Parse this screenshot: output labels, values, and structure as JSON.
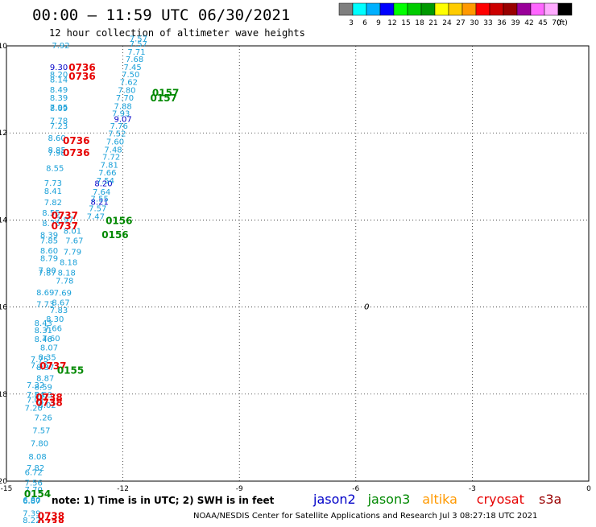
{
  "title": "00:00 – 11:59 UTC 06/30/2021",
  "subtitle": "12 hour collection of altimeter wave heights",
  "note": "note:  1) Time is in UTC; 2) SWH is in feet",
  "credit": "NOAA/NESDIS Center for Satellite Applications and Research   Jul  3 08:27:18 UTC 2021",
  "colors": {
    "obs_default": "#1aa0d8",
    "obs_high": "#0000c8",
    "time_cryosat": "#e60000",
    "time_jason3": "#008800",
    "grid": "#000000",
    "frame": "#000000"
  },
  "colorbar": {
    "colors": [
      "#7f7f7f",
      "#00ffff",
      "#00b0ff",
      "#0000ff",
      "#00ff00",
      "#00cc00",
      "#009900",
      "#ffff00",
      "#ffcc00",
      "#ff9900",
      "#ff0000",
      "#cc0000",
      "#990000",
      "#990099",
      "#ff66ff",
      "#ffaaff",
      "#000000"
    ],
    "labels": [
      "3",
      "6",
      "9",
      "12",
      "15",
      "18",
      "21",
      "24",
      "27",
      "30",
      "33",
      "36",
      "39",
      "42",
      "45",
      "70",
      "(ft)"
    ]
  },
  "legend": [
    {
      "name": "jason2",
      "color": "#0000c8"
    },
    {
      "name": "jason3",
      "color": "#008800"
    },
    {
      "name": "altika",
      "color": "#ff9900"
    },
    {
      "name": "cryosat",
      "color": "#e60000"
    },
    {
      "name": "s3a",
      "color": "#990000"
    }
  ],
  "chart_data": {
    "type": "scatter",
    "title": "00:00 – 11:59 UTC 06/30/2021",
    "subtitle": "12 hour collection of altimeter wave heights",
    "xlim": [
      -15,
      0
    ],
    "ylim": [
      -20,
      -10
    ],
    "x_ticks": [
      "-15",
      "-12",
      "-9",
      "-6",
      "-3",
      "0"
    ],
    "y_ticks": [
      "-10",
      "-12",
      "-14",
      "-16",
      "-18",
      "-20"
    ],
    "x_tick_values": [
      -15,
      -12,
      -9,
      -6,
      -3,
      0
    ],
    "y_tick_values": [
      -10,
      -12,
      -14,
      -16,
      -18,
      -20
    ],
    "grid": true,
    "observations": [
      {
        "x": -13.6,
        "y": -10.06,
        "v": "7.92",
        "c": "obs_default"
      },
      {
        "x": -13.65,
        "y": -10.55,
        "v": "9.30",
        "c": "obs_high"
      },
      {
        "x": -13.65,
        "y": -10.72,
        "v": "8.20",
        "c": "obs_default"
      },
      {
        "x": -13.65,
        "y": -10.84,
        "v": "8.14",
        "c": "obs_default"
      },
      {
        "x": -13.65,
        "y": -11.07,
        "v": "8.49",
        "c": "obs_default"
      },
      {
        "x": -13.65,
        "y": -11.26,
        "v": "8.39",
        "c": "obs_default"
      },
      {
        "x": -13.65,
        "y": -11.48,
        "v": "7.95",
        "c": "obs_default"
      },
      {
        "x": -13.65,
        "y": -11.5,
        "v": "8.09",
        "c": "obs_default"
      },
      {
        "x": -13.65,
        "y": -11.78,
        "v": "7.78",
        "c": "obs_default"
      },
      {
        "x": -13.65,
        "y": -11.9,
        "v": "7.23",
        "c": "obs_default"
      },
      {
        "x": -13.7,
        "y": -12.18,
        "v": "8.60",
        "c": "obs_default"
      },
      {
        "x": -13.7,
        "y": -12.46,
        "v": "8.85",
        "c": "obs_default"
      },
      {
        "x": -13.7,
        "y": -12.52,
        "v": "7.98",
        "c": "obs_default"
      },
      {
        "x": -13.75,
        "y": -12.87,
        "v": "8.55",
        "c": "obs_default"
      },
      {
        "x": -13.8,
        "y": -13.22,
        "v": "7.73",
        "c": "obs_default"
      },
      {
        "x": -13.8,
        "y": -13.4,
        "v": "8.41",
        "c": "obs_default"
      },
      {
        "x": -13.8,
        "y": -13.66,
        "v": "7.82",
        "c": "obs_default"
      },
      {
        "x": -13.85,
        "y": -13.9,
        "v": "8.55",
        "c": "obs_default"
      },
      {
        "x": -13.85,
        "y": -14.14,
        "v": "8.76",
        "c": "obs_default"
      },
      {
        "x": -13.9,
        "y": -14.41,
        "v": "8.39",
        "c": "obs_default"
      },
      {
        "x": -13.9,
        "y": -14.54,
        "v": "7.85",
        "c": "obs_default"
      },
      {
        "x": -13.9,
        "y": -14.77,
        "v": "8.60",
        "c": "obs_default"
      },
      {
        "x": -13.9,
        "y": -14.94,
        "v": "8.79",
        "c": "obs_default"
      },
      {
        "x": -13.95,
        "y": -15.22,
        "v": "7.90",
        "c": "obs_default"
      },
      {
        "x": -13.95,
        "y": -15.28,
        "v": "7.87",
        "c": "obs_default"
      },
      {
        "x": -14.0,
        "y": -15.73,
        "v": "8.69",
        "c": "obs_default"
      },
      {
        "x": -14.0,
        "y": -16.0,
        "v": "7.73",
        "c": "obs_default"
      },
      {
        "x": -14.05,
        "y": -16.43,
        "v": "8.43",
        "c": "obs_default"
      },
      {
        "x": -14.05,
        "y": -16.6,
        "v": "8.31",
        "c": "obs_default"
      },
      {
        "x": -14.05,
        "y": -16.8,
        "v": "8.46",
        "c": "obs_default"
      },
      {
        "x": -14.15,
        "y": -17.26,
        "v": "7.75",
        "c": "obs_default"
      },
      {
        "x": -14.15,
        "y": -17.4,
        "v": "7.36",
        "c": "obs_default"
      },
      {
        "x": -14.25,
        "y": -17.86,
        "v": "7.32",
        "c": "obs_default"
      },
      {
        "x": -14.25,
        "y": -18.08,
        "v": "7.54",
        "c": "obs_default"
      },
      {
        "x": -14.25,
        "y": -18.2,
        "v": "7.01",
        "c": "obs_default"
      },
      {
        "x": -14.3,
        "y": -18.38,
        "v": "7.20",
        "c": "obs_default"
      },
      {
        "x": -14.05,
        "y": -18.08,
        "v": "8.63",
        "c": "obs_default"
      },
      {
        "x": -13.95,
        "y": -18.32,
        "v": "8.02",
        "c": "obs_default"
      },
      {
        "x": -14.05,
        "y": -18.6,
        "v": "7.26",
        "c": "obs_default"
      },
      {
        "x": -14.1,
        "y": -18.9,
        "v": "7.57",
        "c": "obs_default"
      },
      {
        "x": -14.15,
        "y": -19.2,
        "v": "7.80",
        "c": "obs_default"
      },
      {
        "x": -14.2,
        "y": -19.5,
        "v": "8.08",
        "c": "obs_default"
      },
      {
        "x": -14.25,
        "y": -19.76,
        "v": "7.82",
        "c": "obs_default"
      },
      {
        "x": -14.3,
        "y": -19.86,
        "v": "6.72",
        "c": "obs_default"
      },
      {
        "x": -14.3,
        "y": -20.1,
        "v": "7.56",
        "c": "obs_default"
      },
      {
        "x": -14.3,
        "y": -20.26,
        "v": "7.70",
        "c": "obs_default"
      },
      {
        "x": -14.35,
        "y": -20.5,
        "v": "6.80",
        "c": "obs_default"
      },
      {
        "x": -14.35,
        "y": -20.52,
        "v": "6.87",
        "c": "obs_default"
      },
      {
        "x": -14.35,
        "y": -20.8,
        "v": "7.39",
        "c": "obs_default"
      },
      {
        "x": -14.35,
        "y": -20.96,
        "v": "8.22",
        "c": "obs_default"
      },
      {
        "x": -13.25,
        "y": -14.54,
        "v": "7.67",
        "c": "obs_default"
      },
      {
        "x": -13.3,
        "y": -14.8,
        "v": "7.79",
        "c": "obs_default"
      },
      {
        "x": -13.4,
        "y": -15.04,
        "v": "8.18",
        "c": "obs_default"
      },
      {
        "x": -13.45,
        "y": -15.28,
        "v": "8.18",
        "c": "obs_default"
      },
      {
        "x": -13.5,
        "y": -15.46,
        "v": "7.78",
        "c": "obs_default"
      },
      {
        "x": -13.55,
        "y": -15.74,
        "v": "7.69",
        "c": "obs_default"
      },
      {
        "x": -13.6,
        "y": -15.96,
        "v": "8.67",
        "c": "obs_default"
      },
      {
        "x": -13.65,
        "y": -16.14,
        "v": "7.83",
        "c": "obs_default"
      },
      {
        "x": -13.75,
        "y": -16.34,
        "v": "8.30",
        "c": "obs_default"
      },
      {
        "x": -13.8,
        "y": -16.55,
        "v": "7.66",
        "c": "obs_default"
      },
      {
        "x": -13.85,
        "y": -16.78,
        "v": "7.60",
        "c": "obs_default"
      },
      {
        "x": -13.9,
        "y": -17.0,
        "v": "8.07",
        "c": "obs_default"
      },
      {
        "x": -13.95,
        "y": -17.22,
        "v": "8.35",
        "c": "obs_default"
      },
      {
        "x": -14.0,
        "y": -17.45,
        "v": "8.37",
        "c": "obs_default"
      },
      {
        "x": -14.0,
        "y": -17.7,
        "v": "8.87",
        "c": "obs_default"
      },
      {
        "x": -14.05,
        "y": -17.9,
        "v": "8.59",
        "c": "obs_default"
      },
      {
        "x": -13.3,
        "y": -14.32,
        "v": "8.01",
        "c": "obs_default"
      },
      {
        "x": -13.5,
        "y": -14.06,
        "v": "7.97",
        "c": "obs_default"
      },
      {
        "x": -12.6,
        "y": -13.65,
        "v": "8.21",
        "c": "obs_high"
      },
      {
        "x": -12.5,
        "y": -13.23,
        "v": "8.20",
        "c": "obs_high"
      },
      {
        "x": -12.0,
        "y": -11.75,
        "v": "9.07",
        "c": "obs_high"
      },
      {
        "x": -11.6,
        "y": -9.9,
        "v": "7.57",
        "c": "obs_default"
      }
    ],
    "track_points": [
      {
        "x": -11.6,
        "y": -10.02,
        "v": "7.57"
      },
      {
        "x": -11.65,
        "y": -10.2,
        "v": "7.71"
      },
      {
        "x": -11.7,
        "y": -10.37,
        "v": "7.68"
      },
      {
        "x": -11.75,
        "y": -10.55,
        "v": "7.45"
      },
      {
        "x": -11.8,
        "y": -10.72,
        "v": "7.50"
      },
      {
        "x": -11.85,
        "y": -10.9,
        "v": "7.62"
      },
      {
        "x": -11.9,
        "y": -11.08,
        "v": "7.80"
      },
      {
        "x": -11.95,
        "y": -11.26,
        "v": "7.70"
      },
      {
        "x": -12.0,
        "y": -11.45,
        "v": "7.88"
      },
      {
        "x": -12.05,
        "y": -11.62,
        "v": "7.93"
      },
      {
        "x": -12.1,
        "y": -11.9,
        "v": "7.76"
      },
      {
        "x": -12.15,
        "y": -12.08,
        "v": "7.52"
      },
      {
        "x": -12.2,
        "y": -12.26,
        "v": "7.60"
      },
      {
        "x": -12.25,
        "y": -12.45,
        "v": "7.48"
      },
      {
        "x": -12.3,
        "y": -12.62,
        "v": "7.72"
      },
      {
        "x": -12.35,
        "y": -12.8,
        "v": "7.81"
      },
      {
        "x": -12.4,
        "y": -12.98,
        "v": "7.66"
      },
      {
        "x": -12.45,
        "y": -13.16,
        "v": "7.54"
      },
      {
        "x": -12.55,
        "y": -13.42,
        "v": "7.64"
      },
      {
        "x": -12.6,
        "y": -13.58,
        "v": "7.55"
      },
      {
        "x": -12.65,
        "y": -13.8,
        "v": "7.57"
      },
      {
        "x": -12.7,
        "y": -13.98,
        "v": "7.47"
      }
    ],
    "time_labels": [
      {
        "x": -13.05,
        "y": -10.5,
        "t": "0736",
        "sat": "cryosat"
      },
      {
        "x": -13.05,
        "y": -10.7,
        "t": "0736",
        "sat": "cryosat"
      },
      {
        "x": -13.2,
        "y": -12.18,
        "t": "0736",
        "sat": "cryosat"
      },
      {
        "x": -13.2,
        "y": -12.46,
        "t": "0736",
        "sat": "cryosat"
      },
      {
        "x": -13.5,
        "y": -13.9,
        "t": "0737",
        "sat": "cryosat"
      },
      {
        "x": -13.5,
        "y": -14.14,
        "t": "0737",
        "sat": "cryosat"
      },
      {
        "x": -13.8,
        "y": -17.36,
        "t": "0737",
        "sat": "cryosat"
      },
      {
        "x": -13.9,
        "y": -18.08,
        "t": "0738",
        "sat": "cryosat"
      },
      {
        "x": -13.9,
        "y": -18.2,
        "t": "0738",
        "sat": "cryosat"
      },
      {
        "x": -13.85,
        "y": -20.8,
        "t": "0738",
        "sat": "cryosat"
      },
      {
        "x": -13.85,
        "y": -20.96,
        "t": "0738",
        "sat": "cryosat"
      },
      {
        "x": -10.9,
        "y": -11.08,
        "t": "0157",
        "sat": "jason3"
      },
      {
        "x": -10.95,
        "y": -11.2,
        "t": "0157",
        "sat": "jason3"
      },
      {
        "x": -12.1,
        "y": -14.02,
        "t": "0156",
        "sat": "jason3"
      },
      {
        "x": -12.2,
        "y": -14.34,
        "t": "0156",
        "sat": "jason3"
      },
      {
        "x": -13.35,
        "y": -17.46,
        "t": "0155",
        "sat": "jason3"
      },
      {
        "x": -14.2,
        "y": -20.3,
        "t": "0154",
        "sat": "jason3"
      }
    ],
    "markers": [
      {
        "x": -5.72,
        "y": -16.0,
        "v": "0"
      }
    ]
  }
}
